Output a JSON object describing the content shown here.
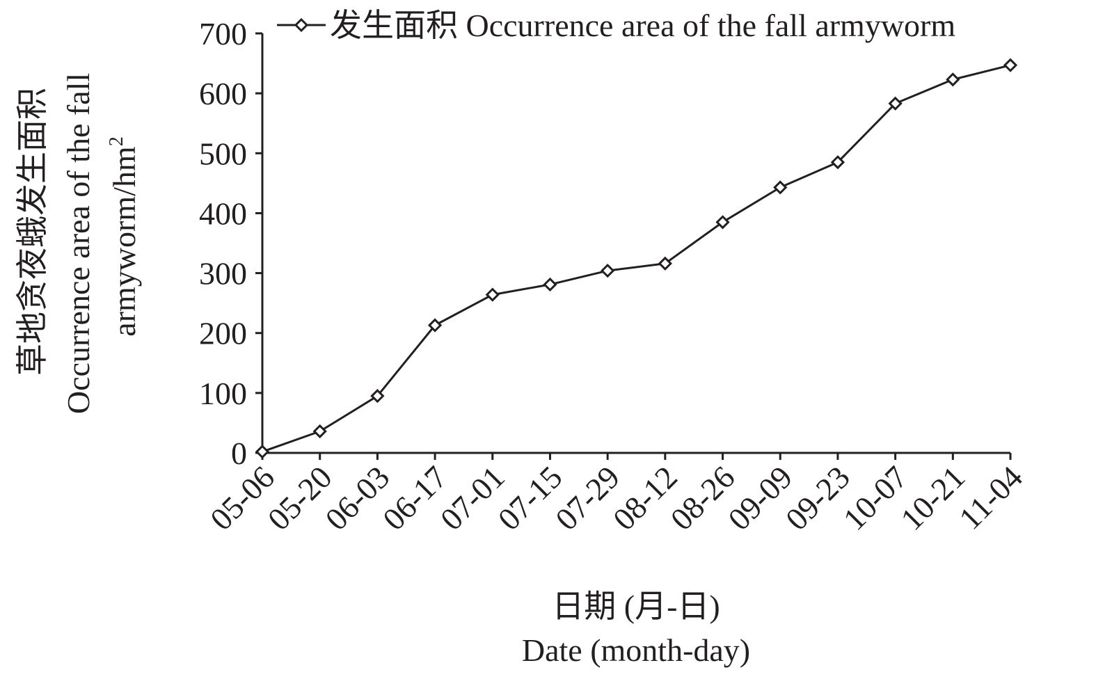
{
  "chart_data": {
    "type": "line",
    "title": "",
    "xlabel_zh": "日期 (月-日)",
    "xlabel_en": "Date (month-day)",
    "ylabel_zh": "草地贪夜蛾发生面积",
    "ylabel_en_line1": "Occurrence area of the fall",
    "ylabel_en_line2_prefix": "armyworm/hm",
    "ylabel_en_superscript": "2",
    "ylim": [
      0,
      700
    ],
    "yticks": [
      "0",
      "100",
      "200",
      "300",
      "400",
      "500",
      "600",
      "700"
    ],
    "categories": [
      "05-06",
      "05-20",
      "06-03",
      "06-17",
      "07-01",
      "07-15",
      "07-29",
      "08-12",
      "08-26",
      "09-09",
      "09-23",
      "10-07",
      "10-21",
      "11-04"
    ],
    "series": [
      {
        "name": "发生面积 Occurrence area of the fall armyworm",
        "marker": "diamond-open",
        "values": [
          2,
          36,
          95,
          213,
          264,
          281,
          304,
          316,
          385,
          443,
          485,
          583,
          623,
          647
        ]
      }
    ],
    "grid": false,
    "legend_position": "top-right",
    "line_color": "#231f20"
  }
}
